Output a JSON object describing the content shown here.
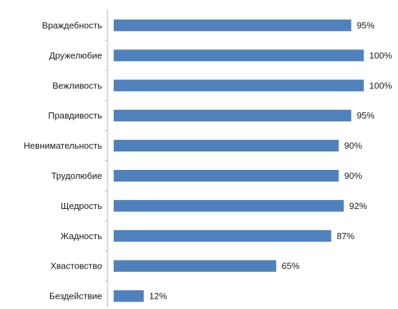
{
  "chart_data": {
    "type": "bar",
    "orientation": "horizontal",
    "categories": [
      "Враждебность",
      "Дружелюбие",
      "Вежливость",
      "Правдивость",
      "Невнимательность",
      "Трудолюбие",
      "Щедрость",
      "Жадность",
      "Хвастовство",
      "Бездействие"
    ],
    "values": [
      95,
      100,
      100,
      95,
      90,
      90,
      92,
      87,
      65,
      12
    ],
    "value_labels": [
      "95%",
      "100%",
      "100%",
      "95%",
      "90%",
      "90%",
      "92%",
      "87%",
      "65%",
      "12%"
    ],
    "title": "",
    "xlabel": "",
    "ylabel": "",
    "xlim": [
      0,
      100
    ],
    "grid": false,
    "legend": "none",
    "bar_color": "#4f81bd",
    "axis_color": "#b0b0b0",
    "text_color": "#1a1a1a"
  }
}
